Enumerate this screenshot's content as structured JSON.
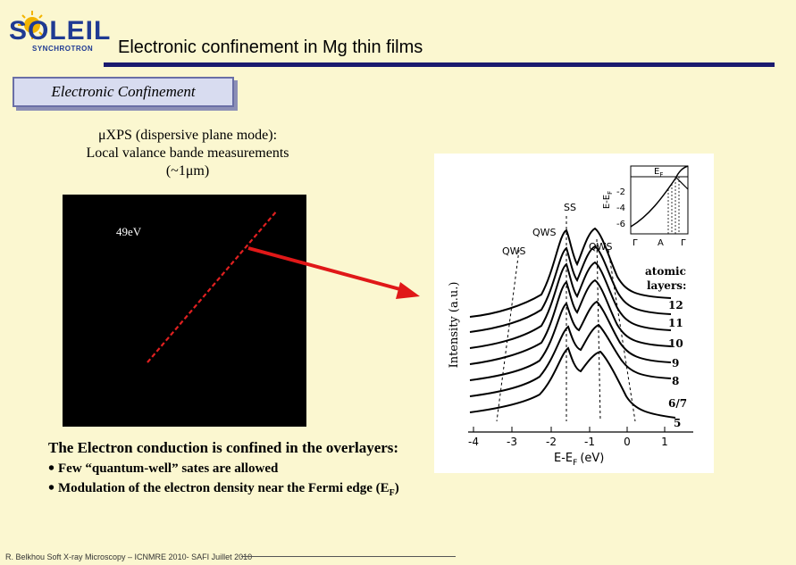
{
  "logo": {
    "name": "SOLEIL",
    "sub": "SYNCHROTRON"
  },
  "title": "Electronic confinement in Mg thin films",
  "section_label": "Electronic Confinement",
  "xps": {
    "line1": "μXPS (dispersive plane mode):",
    "line2": "Local valance bande measurements",
    "line3": "(~1μm)"
  },
  "panel": {
    "energy_label": "49eV"
  },
  "plot": {
    "ylabel": "Intensity (a.u.)",
    "xlabel": "E-E",
    "xlabel_sub": "F",
    "xlabel_unit": "(eV)",
    "xticks": [
      "-4",
      "-3",
      "-2",
      "-1",
      "0",
      "1"
    ],
    "peak_labels": {
      "ss": "SS",
      "qws_left": "QWS",
      "qws_mid": "QWS",
      "qws_right": "QWS"
    },
    "layers_title1": "atomic",
    "layers_title2": "layers:",
    "layers": [
      "12",
      "11",
      "10",
      "9",
      "8",
      "6/7",
      "5"
    ],
    "inset": {
      "ylabel": "E-E",
      "ylabel_sub": "F",
      "yticks": [
        "-2",
        "-4",
        "-6"
      ],
      "xticks": [
        "Γ",
        "A",
        "Γ"
      ],
      "ef_label": "E",
      "ef_sub": "F"
    }
  },
  "conclusion": "The Electron conduction is confined in the overlayers:",
  "bullets": {
    "b1": "Few “quantum-well” sates are allowed",
    "b2_main": "Modulation of the electron density near the  Fermi edge (E",
    "b2_sub": "F",
    "b2_end": ")"
  },
  "footer": "R. Belkhou Soft X-ray Microscopy – ICNMRE 2010- SAFI Juillet 2010"
}
